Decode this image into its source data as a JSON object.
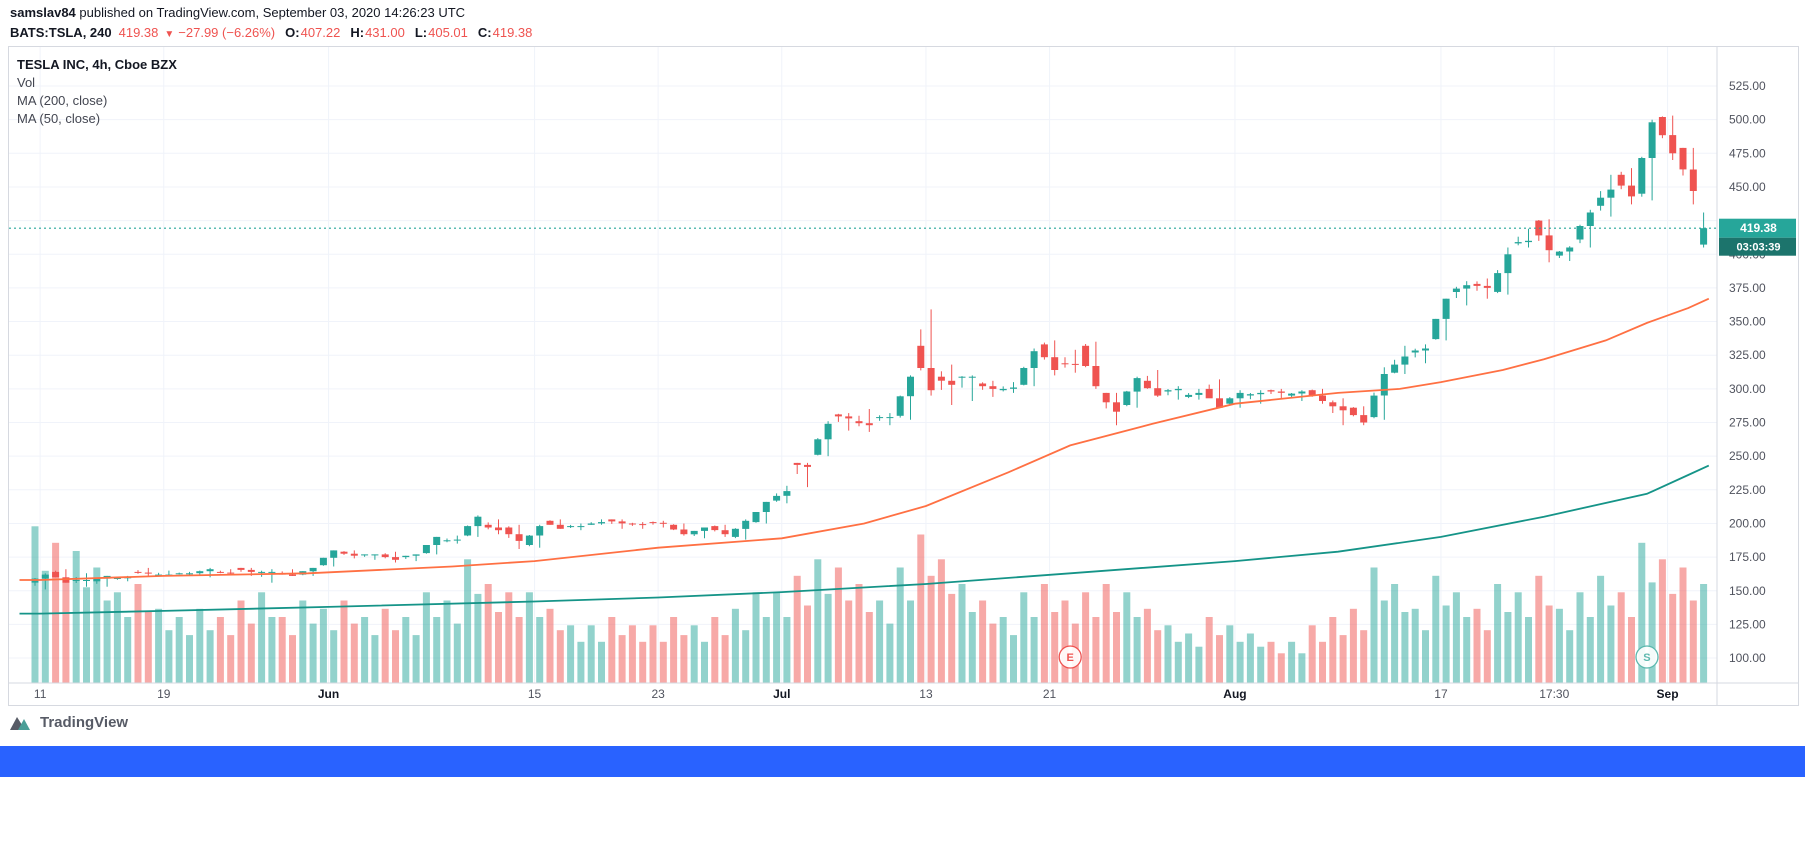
{
  "published_bar": {
    "username": "samslav84",
    "text": " published on TradingView.com, September 03, 2020 14:26:23 UTC"
  },
  "symbol_bar": {
    "symbol": "BATS:TSLA, 240",
    "price": "419.38",
    "direction_icon": "▼",
    "change": "−27.99 (−6.26%)",
    "open_label": "O:",
    "open": "407.22",
    "high_label": "H:",
    "high": "431.00",
    "low_label": "L:",
    "low": "405.01",
    "close_label": "C:",
    "close": "419.38"
  },
  "legend": {
    "title": "TESLA INC, 4h, Cboe BZX",
    "vol_label": "Vol",
    "ma200_label": "MA (200, close)",
    "ma50_label": "MA (50, close)"
  },
  "footer": {
    "logo_text": "TradingView"
  },
  "axis": {
    "price_labels": [
      525,
      500,
      475,
      450,
      400,
      375,
      350,
      325,
      300,
      275,
      250,
      225,
      200,
      175,
      150,
      125,
      100
    ],
    "time_labels": [
      {
        "text": "11",
        "day": 0
      },
      {
        "text": "19",
        "day": 6
      },
      {
        "text": "Jun",
        "day": 14,
        "major": true
      },
      {
        "text": "15",
        "day": 24
      },
      {
        "text": "23",
        "day": 30
      },
      {
        "text": "Jul",
        "day": 36,
        "major": true
      },
      {
        "text": "13",
        "day": 43
      },
      {
        "text": "21",
        "day": 49
      },
      {
        "text": "Aug",
        "day": 58,
        "major": true
      },
      {
        "text": "17",
        "day": 68
      },
      {
        "text": "17:30",
        "day": 73.5
      },
      {
        "text": "Sep",
        "day": 79,
        "major": true
      }
    ],
    "last_price_label": "419.38",
    "countdown": "03:03:39"
  },
  "markers": [
    {
      "letter": "E",
      "day": 50,
      "color": "#ef5350"
    },
    {
      "letter": "S",
      "day": 78,
      "color": "#5cb8ae"
    }
  ],
  "colors": {
    "up": "#26a69a",
    "down": "#ef5350",
    "vol_up": "rgba(38,166,154,0.5)",
    "vol_down": "rgba(239,83,80,0.5)",
    "ma50": "#ff7043",
    "ma200": "#159488",
    "grid": "#f0f3fa",
    "axis_text": "#50535e",
    "border": "#d6d9e0",
    "badge_bg": "#26a69a",
    "countdown_bg": "#1c746c",
    "footer_bar": "#2962ff",
    "header_text": "#131722"
  },
  "chart_data": {
    "type": "candlestick",
    "title": "TESLA INC, 4h, Cboe BZX",
    "interval": "4h",
    "bars_per_day": 2,
    "ylim": [
      81,
      554
    ],
    "price_axis_step": 25,
    "days": [
      [
        "05-11",
        156,
        163,
        151,
        162,
        95
      ],
      [
        "05-12",
        164,
        166,
        156,
        156,
        85
      ],
      [
        "05-13",
        158,
        163,
        153,
        158,
        80
      ],
      [
        "05-14",
        157,
        161,
        153,
        161,
        70
      ],
      [
        "05-15",
        159,
        161,
        157,
        160,
        55
      ],
      [
        "05-18",
        164,
        167,
        161,
        163,
        60
      ],
      [
        "05-19",
        162,
        165,
        161,
        162,
        45
      ],
      [
        "05-20",
        163,
        164,
        161,
        163,
        40
      ],
      [
        "05-21",
        163,
        167,
        160,
        166,
        45
      ],
      [
        "05-22",
        164,
        166,
        162,
        163,
        40
      ],
      [
        "05-26",
        167,
        167,
        161,
        164,
        50
      ],
      [
        "05-27",
        164,
        166,
        156,
        164,
        55
      ],
      [
        "05-28",
        163,
        166,
        161,
        161,
        40
      ],
      [
        "05-29",
        162,
        167,
        161,
        167,
        50
      ],
      [
        "06-01",
        169,
        180,
        168,
        180,
        45
      ],
      [
        "06-02",
        179,
        180,
        174,
        176,
        50
      ],
      [
        "06-03",
        177,
        177,
        173,
        177,
        40
      ],
      [
        "06-04",
        177,
        179,
        171,
        173,
        45
      ],
      [
        "06-05",
        175,
        177,
        172,
        177,
        40
      ],
      [
        "06-08",
        178,
        190,
        177,
        190,
        55
      ],
      [
        "06-09",
        187,
        191,
        185,
        188,
        50
      ],
      [
        "06-10",
        191,
        206,
        190,
        205,
        75
      ],
      [
        "06-11",
        199,
        203,
        192,
        195,
        60
      ],
      [
        "06-12",
        197,
        199,
        181,
        187,
        55
      ],
      [
        "06-15",
        184,
        199,
        182,
        198,
        55
      ],
      [
        "06-16",
        202,
        203,
        196,
        196,
        45
      ],
      [
        "06-17",
        198,
        200,
        195,
        198,
        35
      ],
      [
        "06-18",
        199,
        203,
        199,
        201,
        35
      ],
      [
        "06-19",
        203,
        203,
        196,
        200,
        40
      ],
      [
        "06-22",
        200,
        201,
        196,
        199,
        35
      ],
      [
        "06-23",
        201,
        202,
        197,
        200,
        35
      ],
      [
        "06-24",
        199,
        200,
        191,
        192,
        40
      ],
      [
        "06-25",
        192,
        197,
        189,
        197,
        35
      ],
      [
        "06-26",
        198,
        199,
        190,
        192,
        40
      ],
      [
        "06-29",
        190,
        203,
        188,
        202,
        45
      ],
      [
        "06-30",
        201,
        216,
        200,
        216,
        55
      ],
      [
        "07-01",
        217,
        228,
        215,
        224,
        55
      ],
      [
        "07-02",
        245,
        245,
        227,
        242,
        65
      ],
      [
        "07-06",
        251,
        276,
        250,
        274,
        75
      ],
      [
        "07-07",
        281,
        282,
        269,
        278,
        70
      ],
      [
        "07-08",
        276,
        285,
        268,
        273,
        60
      ],
      [
        "07-09",
        279,
        282,
        273,
        279,
        50
      ],
      [
        "07-10",
        280,
        310,
        277,
        309,
        70
      ],
      [
        "07-13",
        332,
        359,
        295,
        299,
        90
      ],
      [
        "07-14",
        309,
        318,
        288,
        303,
        75
      ],
      [
        "07-15",
        309,
        310,
        291,
        309,
        60
      ],
      [
        "07-16",
        304,
        306,
        294,
        300,
        50
      ],
      [
        "07-17",
        299,
        305,
        297,
        301,
        40
      ],
      [
        "07-20",
        303,
        330,
        302,
        328,
        55
      ],
      [
        "07-21",
        333,
        336,
        310,
        314,
        60
      ],
      [
        "07-22",
        319,
        329,
        312,
        318,
        50
      ],
      [
        "07-23",
        332,
        335,
        300,
        302,
        55
      ],
      [
        "07-24",
        297,
        297,
        273,
        283,
        60
      ],
      [
        "07-27",
        288,
        309,
        286,
        308,
        55
      ],
      [
        "07-28",
        306,
        314,
        294,
        295,
        45
      ],
      [
        "07-29",
        298,
        302,
        292,
        300,
        35
      ],
      [
        "07-30",
        294,
        300,
        292,
        297,
        30
      ],
      [
        "07-31",
        300,
        307,
        287,
        286,
        40
      ],
      [
        "08-03",
        289,
        299,
        286,
        297,
        35
      ],
      [
        "08-04",
        295,
        299,
        289,
        297,
        30
      ],
      [
        "08-05",
        299,
        300,
        293,
        297,
        25
      ],
      [
        "08-06",
        295,
        299,
        291,
        298,
        25
      ],
      [
        "08-07",
        299,
        300,
        289,
        291,
        35
      ],
      [
        "08-10",
        290,
        293,
        273,
        284,
        40
      ],
      [
        "08-11",
        286,
        287,
        273,
        275,
        45
      ],
      [
        "08-12",
        279,
        316,
        277,
        311,
        70
      ],
      [
        "08-13",
        312,
        332,
        311,
        324,
        60
      ],
      [
        "08-14",
        327,
        333,
        319,
        330,
        45
      ],
      [
        "08-17",
        337,
        367,
        336,
        367,
        65
      ],
      [
        "08-18",
        372,
        380,
        362,
        377,
        55
      ],
      [
        "08-19",
        378,
        382,
        367,
        375,
        45
      ],
      [
        "08-20",
        372,
        405,
        370,
        400,
        60
      ],
      [
        "08-21",
        408,
        419,
        405,
        410,
        55
      ],
      [
        "08-24",
        425,
        426,
        394,
        403,
        65
      ],
      [
        "08-25",
        399,
        406,
        395,
        405,
        45
      ],
      [
        "08-26",
        411,
        433,
        405,
        431,
        55
      ],
      [
        "08-27",
        436,
        459,
        428,
        448,
        65
      ],
      [
        "08-28",
        459,
        464,
        437,
        443,
        55
      ],
      [
        "08-31",
        445,
        500,
        440,
        498,
        85
      ],
      [
        "09-01",
        502,
        503,
        470,
        475,
        75
      ],
      [
        "09-02",
        479,
        479,
        437,
        447,
        70
      ],
      [
        "09-03",
        407.22,
        431.0,
        405.01,
        419.38,
        60
      ]
    ],
    "current_bar": {
      "o": 407.22,
      "h": 431.0,
      "l": 405.01,
      "c": 419.38
    },
    "last_price": 419.38,
    "ma50_points": [
      [
        -1,
        158
      ],
      [
        0,
        158
      ],
      [
        6,
        161
      ],
      [
        13,
        163
      ],
      [
        20,
        168
      ],
      [
        24,
        172
      ],
      [
        30,
        182
      ],
      [
        36,
        189
      ],
      [
        40,
        200
      ],
      [
        43,
        213
      ],
      [
        47,
        238
      ],
      [
        50,
        258
      ],
      [
        54,
        274
      ],
      [
        58,
        289
      ],
      [
        63,
        297
      ],
      [
        66,
        300
      ],
      [
        68,
        305
      ],
      [
        71,
        314
      ],
      [
        73,
        322
      ],
      [
        76,
        336
      ],
      [
        78,
        349
      ],
      [
        80,
        360
      ],
      [
        81,
        367
      ]
    ],
    "ma200_points": [
      [
        -1,
        133
      ],
      [
        0,
        133
      ],
      [
        6,
        135
      ],
      [
        14,
        138
      ],
      [
        24,
        142
      ],
      [
        30,
        145
      ],
      [
        36,
        149
      ],
      [
        43,
        155
      ],
      [
        50,
        163
      ],
      [
        58,
        172
      ],
      [
        63,
        179
      ],
      [
        68,
        190
      ],
      [
        73,
        205
      ],
      [
        78,
        222
      ],
      [
        80,
        236
      ],
      [
        81,
        243
      ]
    ]
  }
}
